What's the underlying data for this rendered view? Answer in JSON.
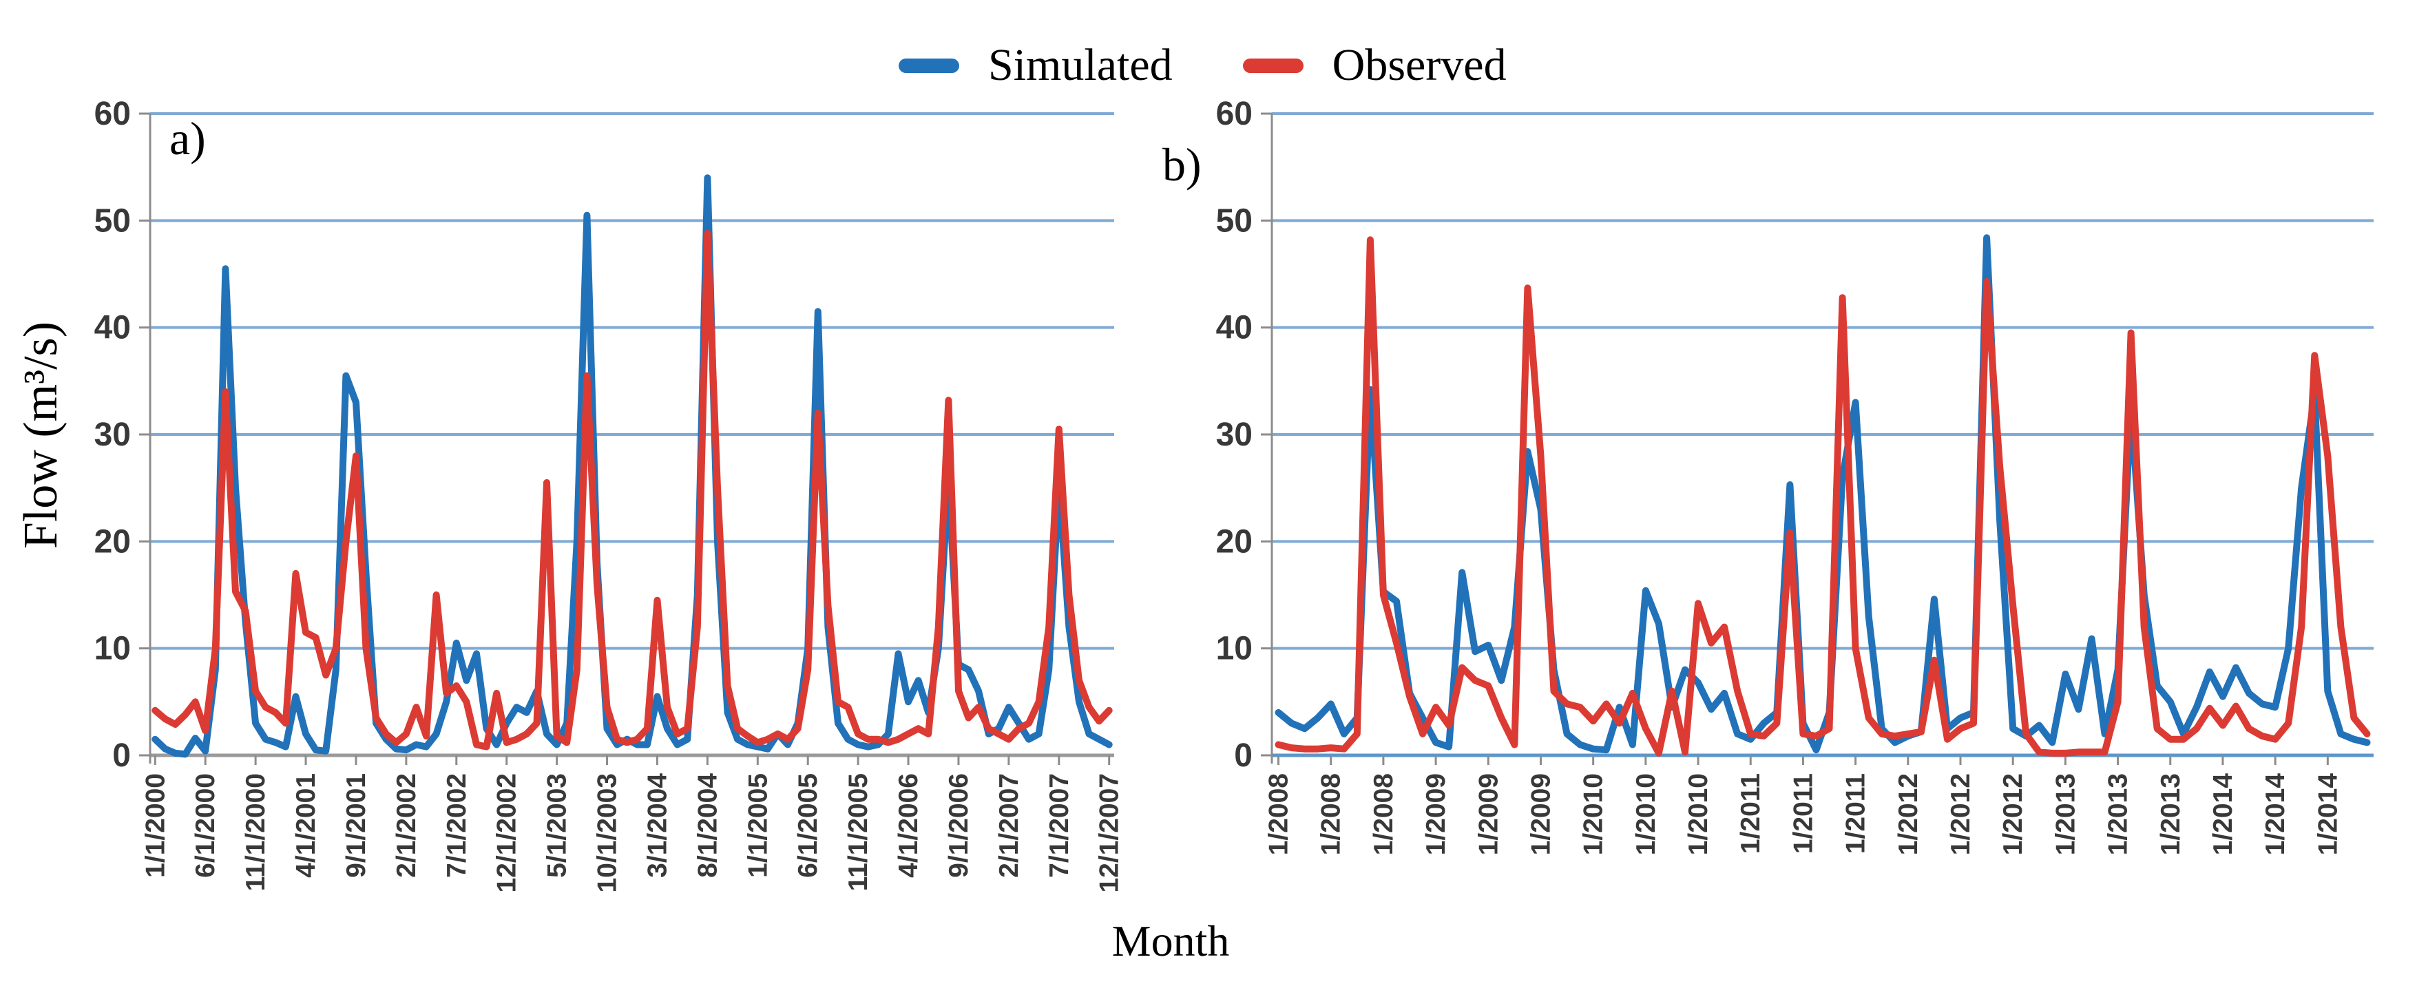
{
  "legend": {
    "items": [
      {
        "label": "Simulated",
        "color": "#2272B9"
      },
      {
        "label": "Observed",
        "color": "#DB3B33"
      }
    ]
  },
  "axis": {
    "y_title": "Flow (m³/s)",
    "x_title": "Month",
    "y_ticks": [
      0,
      10,
      20,
      30,
      40,
      50,
      60
    ]
  },
  "colors": {
    "simulated": "#2272B9",
    "observed": "#DB3B33",
    "gridline": "#7FAAD6",
    "axis_line": "#9A9A9A",
    "axis_line_b": "#5E96CC",
    "tick_label": "#383838"
  },
  "chart_data": [
    {
      "id": "a",
      "panel_label": "a)",
      "type": "line",
      "months": 96,
      "start_label": "1/1/2000",
      "x_tick_interval_months": 5,
      "x_tick_labels": [
        "1/1/2000",
        "6/1/2000",
        "11/1/2000",
        "4/1/2001",
        "9/1/2001",
        "2/1/2002",
        "7/1/2002",
        "12/1/2002",
        "5/1/2003",
        "10/1/2003",
        "3/1/2004",
        "8/1/2004",
        "1/1/2005",
        "6/1/2005",
        "11/1/2005",
        "4/1/2006",
        "9/1/2006",
        "2/1/2007",
        "7/1/2007",
        "12/1/2007"
      ],
      "ylim": [
        0,
        60
      ],
      "series": [
        {
          "name": "Simulated",
          "values": [
            1.5,
            0.6,
            0.2,
            0.1,
            1.6,
            0.4,
            8,
            45.5,
            25,
            12.5,
            3,
            1.5,
            1.2,
            0.8,
            5.5,
            2,
            0.5,
            0.4,
            8,
            35.5,
            33,
            17,
            3,
            1.5,
            0.6,
            0.5,
            1,
            0.8,
            2,
            5,
            10.5,
            7,
            9.5,
            2.5,
            1,
            3,
            4.5,
            4,
            6,
            2,
            1,
            3,
            20,
            50.5,
            18,
            2.5,
            1,
            1.5,
            1,
            1,
            5.5,
            2.5,
            1,
            1.5,
            15,
            54,
            20,
            4,
            1.5,
            1,
            0.8,
            0.6,
            2,
            1,
            3,
            10,
            41.5,
            12,
            3,
            1.5,
            1,
            0.8,
            1,
            2,
            9.5,
            5,
            7,
            4,
            10,
            26,
            8.5,
            8,
            6,
            2,
            2.5,
            4.5,
            3,
            1.5,
            2,
            8,
            25.5,
            12,
            5,
            2,
            1.5,
            1
          ]
        },
        {
          "name": "Observed",
          "values": [
            4.2,
            3.4,
            2.9,
            3.8,
            5,
            2.3,
            10,
            34,
            15.3,
            13.5,
            6,
            4.5,
            4,
            3,
            17,
            11.5,
            11,
            7.5,
            10,
            20,
            28,
            10,
            3.5,
            2,
            1.2,
            2,
            4.5,
            1.8,
            15,
            5.8,
            6.5,
            5,
            1,
            0.8,
            5.8,
            1.2,
            1.5,
            2,
            3,
            25.5,
            1.8,
            1.2,
            8,
            35.5,
            16,
            4.5,
            1.5,
            1.2,
            1.5,
            2.5,
            14.5,
            4.5,
            2,
            2.5,
            12,
            48.8,
            25,
            6.5,
            2.5,
            1.8,
            1.2,
            1.5,
            2,
            1.5,
            2.5,
            8,
            32,
            14,
            5,
            4.5,
            2,
            1.5,
            1.5,
            1.2,
            1.5,
            2,
            2.5,
            2,
            12,
            33.2,
            6,
            3.5,
            4.5,
            2.5,
            2,
            1.5,
            2.5,
            3,
            5,
            12,
            30.5,
            15,
            7,
            4.5,
            3.2,
            4.2
          ]
        }
      ]
    },
    {
      "id": "b",
      "panel_label": "b)",
      "type": "line",
      "months": 84,
      "start_label": "1/2008",
      "x_tick_interval_months": 4,
      "x_tick_labels": [
        "1/2008",
        "1/2008",
        "1/2008",
        "1/2009",
        "1/2009",
        "1/2009",
        "1/2010",
        "1/2010",
        "1/2010",
        "1/2011",
        "1/2011",
        "1/2011",
        "1/2012",
        "1/2012",
        "1/2012",
        "1/2013",
        "1/2013",
        "1/2013",
        "1/2014",
        "1/2014",
        "1/2014"
      ],
      "ylim": [
        0,
        60
      ],
      "series": [
        {
          "name": "Simulated",
          "values": [
            4,
            3,
            2.5,
            3.5,
            4.8,
            2,
            3.5,
            34.2,
            15.3,
            14.4,
            5.8,
            3.5,
            1.2,
            0.8,
            17.1,
            9.7,
            10.3,
            7,
            12,
            28.4,
            23,
            8,
            2,
            1,
            0.6,
            0.5,
            4.5,
            1,
            15.4,
            12.3,
            4.5,
            8,
            6.8,
            4.3,
            5.8,
            2,
            1.5,
            3,
            4,
            25.3,
            3,
            0.5,
            4,
            26,
            33,
            13,
            2.5,
            1.2,
            1.8,
            2.2,
            14.6,
            2.5,
            3.5,
            4,
            48.4,
            22,
            2.5,
            1.8,
            2.8,
            1.2,
            7.6,
            4.3,
            10.9,
            2,
            8,
            32.7,
            15,
            6.5,
            5,
            2,
            4.5,
            7.8,
            5.5,
            8.2,
            5.8,
            4.8,
            4.5,
            10,
            25,
            33.8,
            6,
            2,
            1.5,
            1.2
          ]
        },
        {
          "name": "Observed",
          "values": [
            1,
            0.7,
            0.6,
            0.6,
            0.7,
            0.6,
            2,
            48.2,
            15,
            10.5,
            5.5,
            2,
            4.5,
            2.8,
            8.2,
            7,
            6.5,
            3.5,
            1,
            43.7,
            28,
            6,
            4.8,
            4.5,
            3.2,
            4.8,
            3,
            5.8,
            2.5,
            0.2,
            6,
            0.3,
            14.2,
            10.5,
            12,
            6,
            2,
            1.8,
            3,
            20.8,
            2,
            1.8,
            2.5,
            42.8,
            10,
            3.5,
            2,
            1.8,
            2,
            2.2,
            8.9,
            1.5,
            2.5,
            3,
            44.3,
            27,
            14,
            2,
            0.3,
            0.2,
            0.2,
            0.3,
            0.3,
            0.3,
            5,
            39.5,
            12,
            2.5,
            1.5,
            1.5,
            2.5,
            4.4,
            2.8,
            4.6,
            2.5,
            1.8,
            1.5,
            3,
            12,
            37.4,
            28,
            12,
            3.5,
            2
          ]
        }
      ]
    }
  ]
}
